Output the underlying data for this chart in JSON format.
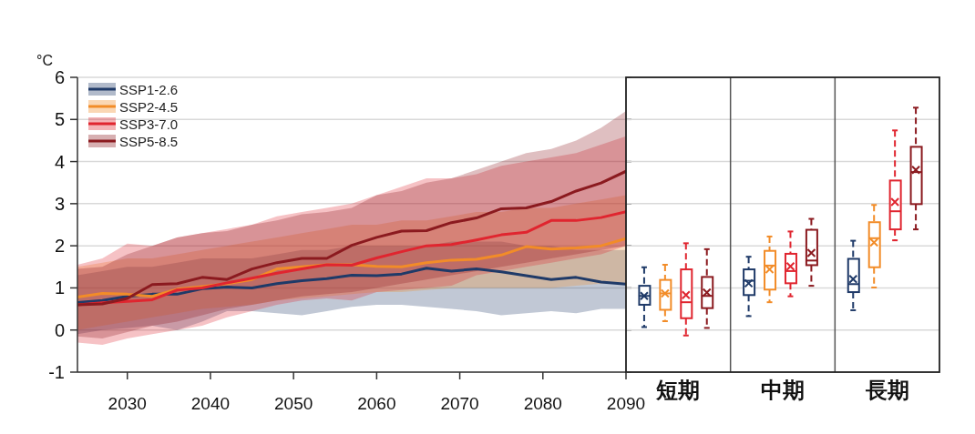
{
  "chart_data": [
    {
      "type": "line",
      "ylabel": "°C",
      "xlim": [
        2024,
        2090
      ],
      "xticks": [
        2030,
        2040,
        2050,
        2060,
        2070,
        2080,
        2090
      ],
      "ylim": [
        -1,
        6
      ],
      "yticks": [
        -1,
        0,
        1,
        2,
        3,
        4,
        5,
        6
      ],
      "grid": "y",
      "legend": "top left",
      "x": [
        2024,
        2027,
        2030,
        2033,
        2036,
        2039,
        2042,
        2045,
        2048,
        2051,
        2054,
        2057,
        2060,
        2063,
        2066,
        2069,
        2072,
        2075,
        2078,
        2081,
        2084,
        2087,
        2090
      ],
      "series": [
        {
          "name": "SSP1-2.6",
          "color": "#1f3a68",
          "values": [
            0.65,
            0.7,
            0.8,
            0.85,
            0.85,
            0.98,
            1.02,
            1.0,
            1.1,
            1.17,
            1.22,
            1.3,
            1.29,
            1.33,
            1.47,
            1.4,
            1.45,
            1.38,
            1.29,
            1.2,
            1.25,
            1.14,
            1.09
          ],
          "lower": [
            -0.1,
            0.0,
            0.05,
            0.1,
            0.0,
            0.2,
            0.45,
            0.45,
            0.4,
            0.35,
            0.45,
            0.55,
            0.6,
            0.6,
            0.55,
            0.5,
            0.45,
            0.35,
            0.4,
            0.45,
            0.4,
            0.5,
            0.5
          ],
          "upper": [
            1.3,
            1.4,
            1.5,
            1.5,
            1.6,
            1.7,
            1.7,
            1.7,
            1.8,
            1.9,
            1.9,
            2.0,
            2.0,
            2.0,
            2.0,
            2.1,
            2.1,
            2.1,
            2.0,
            2.0,
            1.9,
            1.9,
            1.9
          ]
        },
        {
          "name": "SSP2-4.5",
          "color": "#f28c28",
          "values": [
            0.78,
            0.87,
            0.85,
            0.8,
            0.97,
            1.03,
            1.1,
            1.2,
            1.45,
            1.5,
            1.55,
            1.55,
            1.51,
            1.5,
            1.6,
            1.66,
            1.68,
            1.78,
            1.98,
            1.92,
            1.95,
            2.0,
            2.17
          ],
          "lower": [
            0.0,
            0.1,
            0.2,
            0.3,
            0.4,
            0.5,
            0.55,
            0.6,
            0.7,
            0.75,
            0.8,
            0.85,
            0.9,
            0.9,
            0.95,
            1.0,
            1.0,
            1.0,
            1.0,
            1.0,
            1.05,
            1.1,
            1.1
          ],
          "upper": [
            1.5,
            1.6,
            1.7,
            1.7,
            1.8,
            1.9,
            2.0,
            2.1,
            2.2,
            2.3,
            2.4,
            2.5,
            2.5,
            2.6,
            2.6,
            2.7,
            2.8,
            2.8,
            2.9,
            2.9,
            3.0,
            3.1,
            3.2
          ]
        },
        {
          "name": "SSP3-7.0",
          "color": "#e0252f",
          "values": [
            0.6,
            0.65,
            0.68,
            0.72,
            0.95,
            1.0,
            1.12,
            1.23,
            1.35,
            1.45,
            1.55,
            1.54,
            1.71,
            1.86,
            2.0,
            2.03,
            2.14,
            2.26,
            2.32,
            2.6,
            2.6,
            2.67,
            2.81
          ],
          "lower": [
            -0.3,
            -0.35,
            -0.2,
            -0.1,
            0.0,
            0.1,
            0.3,
            0.45,
            0.6,
            0.7,
            0.75,
            0.7,
            0.9,
            0.95,
            1.0,
            1.05,
            1.3,
            1.4,
            1.5,
            1.6,
            1.7,
            1.8,
            2.0
          ],
          "upper": [
            1.55,
            1.7,
            2.05,
            2.0,
            2.2,
            2.3,
            2.4,
            2.5,
            2.7,
            2.8,
            2.9,
            3.0,
            3.2,
            3.4,
            3.6,
            3.6,
            3.7,
            3.9,
            4.0,
            4.1,
            4.2,
            4.4,
            4.6
          ]
        },
        {
          "name": "SSP5-8.5",
          "color": "#8b1a1f",
          "values": [
            0.6,
            0.62,
            0.75,
            1.08,
            1.1,
            1.25,
            1.2,
            1.45,
            1.6,
            1.7,
            1.7,
            2.01,
            2.2,
            2.35,
            2.36,
            2.55,
            2.66,
            2.88,
            2.9,
            3.05,
            3.3,
            3.49,
            3.77
          ],
          "lower": [
            -0.15,
            -0.2,
            -0.05,
            0.1,
            0.2,
            0.35,
            0.5,
            0.6,
            0.7,
            0.8,
            0.85,
            0.9,
            1.0,
            1.1,
            1.2,
            1.3,
            1.4,
            1.5,
            1.6,
            1.7,
            1.8,
            1.9,
            2.0
          ],
          "upper": [
            1.45,
            1.5,
            1.8,
            2.0,
            2.2,
            2.3,
            2.35,
            2.5,
            2.6,
            2.75,
            2.8,
            2.9,
            3.2,
            3.3,
            3.5,
            3.6,
            3.8,
            4.0,
            4.2,
            4.3,
            4.5,
            4.8,
            5.2
          ]
        }
      ]
    },
    {
      "type": "box",
      "categories": [
        "短期",
        "中期",
        "長期"
      ],
      "ylim": [
        -1,
        6
      ],
      "yticks": [
        -1,
        0,
        1,
        2,
        3,
        4,
        5,
        6
      ],
      "tick_labels": "x",
      "grid": "y",
      "series": [
        {
          "color": "#1f3a68",
          "boxes": [
            {
              "low": 0.07,
              "q1": 0.6,
              "median": 0.81,
              "q3": 1.05,
              "high": 1.49,
              "mean": 0.81
            },
            {
              "low": 0.33,
              "q1": 0.83,
              "median": 1.17,
              "q3": 1.44,
              "high": 1.74,
              "mean": 1.11
            },
            {
              "low": 0.47,
              "q1": 0.9,
              "median": 1.09,
              "q3": 1.69,
              "high": 2.12,
              "mean": 1.21
            }
          ]
        },
        {
          "color": "#f28c28",
          "boxes": [
            {
              "low": 0.21,
              "q1": 0.48,
              "median": 0.87,
              "q3": 1.19,
              "high": 1.55,
              "mean": 0.87
            },
            {
              "low": 0.66,
              "q1": 0.96,
              "median": 1.53,
              "q3": 1.88,
              "high": 2.22,
              "mean": 1.44
            },
            {
              "low": 1.01,
              "q1": 1.49,
              "median": 2.18,
              "q3": 2.56,
              "high": 2.97,
              "mean": 2.08
            }
          ]
        },
        {
          "color": "#e0252f",
          "boxes": [
            {
              "low": -0.13,
              "q1": 0.28,
              "median": 0.66,
              "q3": 1.44,
              "high": 2.06,
              "mean": 0.83
            },
            {
              "low": 0.8,
              "q1": 1.11,
              "median": 1.4,
              "q3": 1.81,
              "high": 2.34,
              "mean": 1.51
            },
            {
              "low": 2.13,
              "q1": 2.39,
              "median": 2.82,
              "q3": 3.55,
              "high": 4.74,
              "mean": 3.04
            }
          ]
        },
        {
          "color": "#8b1a1f",
          "boxes": [
            {
              "low": 0.05,
              "q1": 0.52,
              "median": 0.81,
              "q3": 1.26,
              "high": 1.92,
              "mean": 0.89
            },
            {
              "low": 1.05,
              "q1": 1.54,
              "median": 1.65,
              "q3": 2.38,
              "high": 2.64,
              "mean": 1.83
            },
            {
              "low": 2.39,
              "q1": 2.99,
              "median": 3.75,
              "q3": 4.35,
              "high": 5.28,
              "mean": 3.8
            }
          ]
        }
      ]
    }
  ]
}
